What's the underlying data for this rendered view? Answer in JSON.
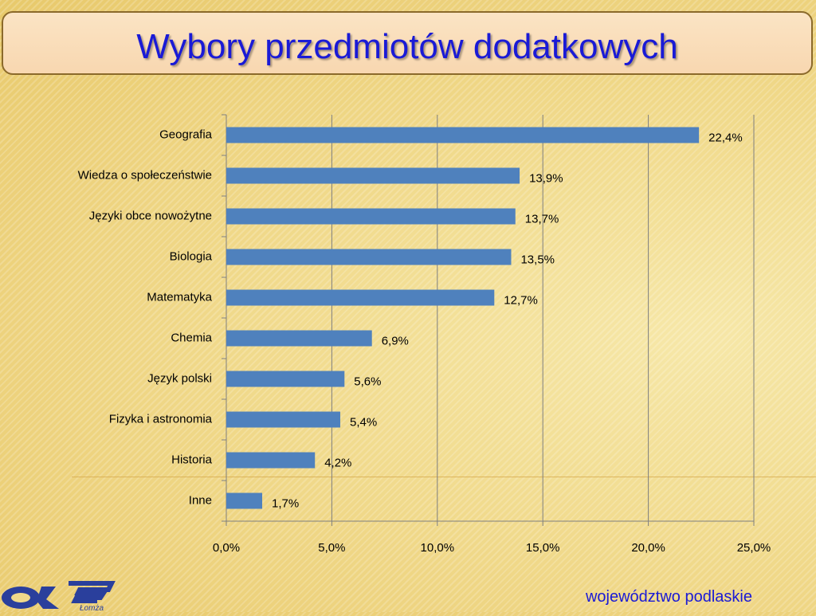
{
  "slide": {
    "title": "Wybory przedmiotów dodatkowych",
    "footer": "województwo podlaskie",
    "logo_icon": "oke-lomza-logo",
    "logo_text": "Łomża"
  },
  "colors": {
    "bar": "#4f81bd",
    "title": "#1a1ad6",
    "gridline": "#7f7f7f"
  },
  "chart_data": {
    "type": "bar",
    "orientation": "horizontal",
    "title": "",
    "xlabel": "",
    "ylabel": "",
    "categories": [
      "Geografia",
      "Wiedza o społeczeństwie",
      "Języki obce nowożytne",
      "Biologia",
      "Matematyka",
      "Chemia",
      "Język polski",
      "Fizyka i astronomia",
      "Historia",
      "Inne"
    ],
    "values": [
      22.4,
      13.9,
      13.7,
      13.5,
      12.7,
      6.9,
      5.6,
      5.4,
      4.2,
      1.7
    ],
    "value_labels": [
      "22,4%",
      "13,9%",
      "13,7%",
      "13,5%",
      "12,7%",
      "6,9%",
      "5,6%",
      "5,4%",
      "4,2%",
      "1,7%"
    ],
    "xlim": [
      0,
      25
    ],
    "xticks": [
      0,
      5,
      10,
      15,
      20,
      25
    ],
    "xtick_labels": [
      "0,0%",
      "5,0%",
      "10,0%",
      "15,0%",
      "20,0%",
      "25,0%"
    ],
    "grid": "vertical",
    "legend": "none"
  }
}
